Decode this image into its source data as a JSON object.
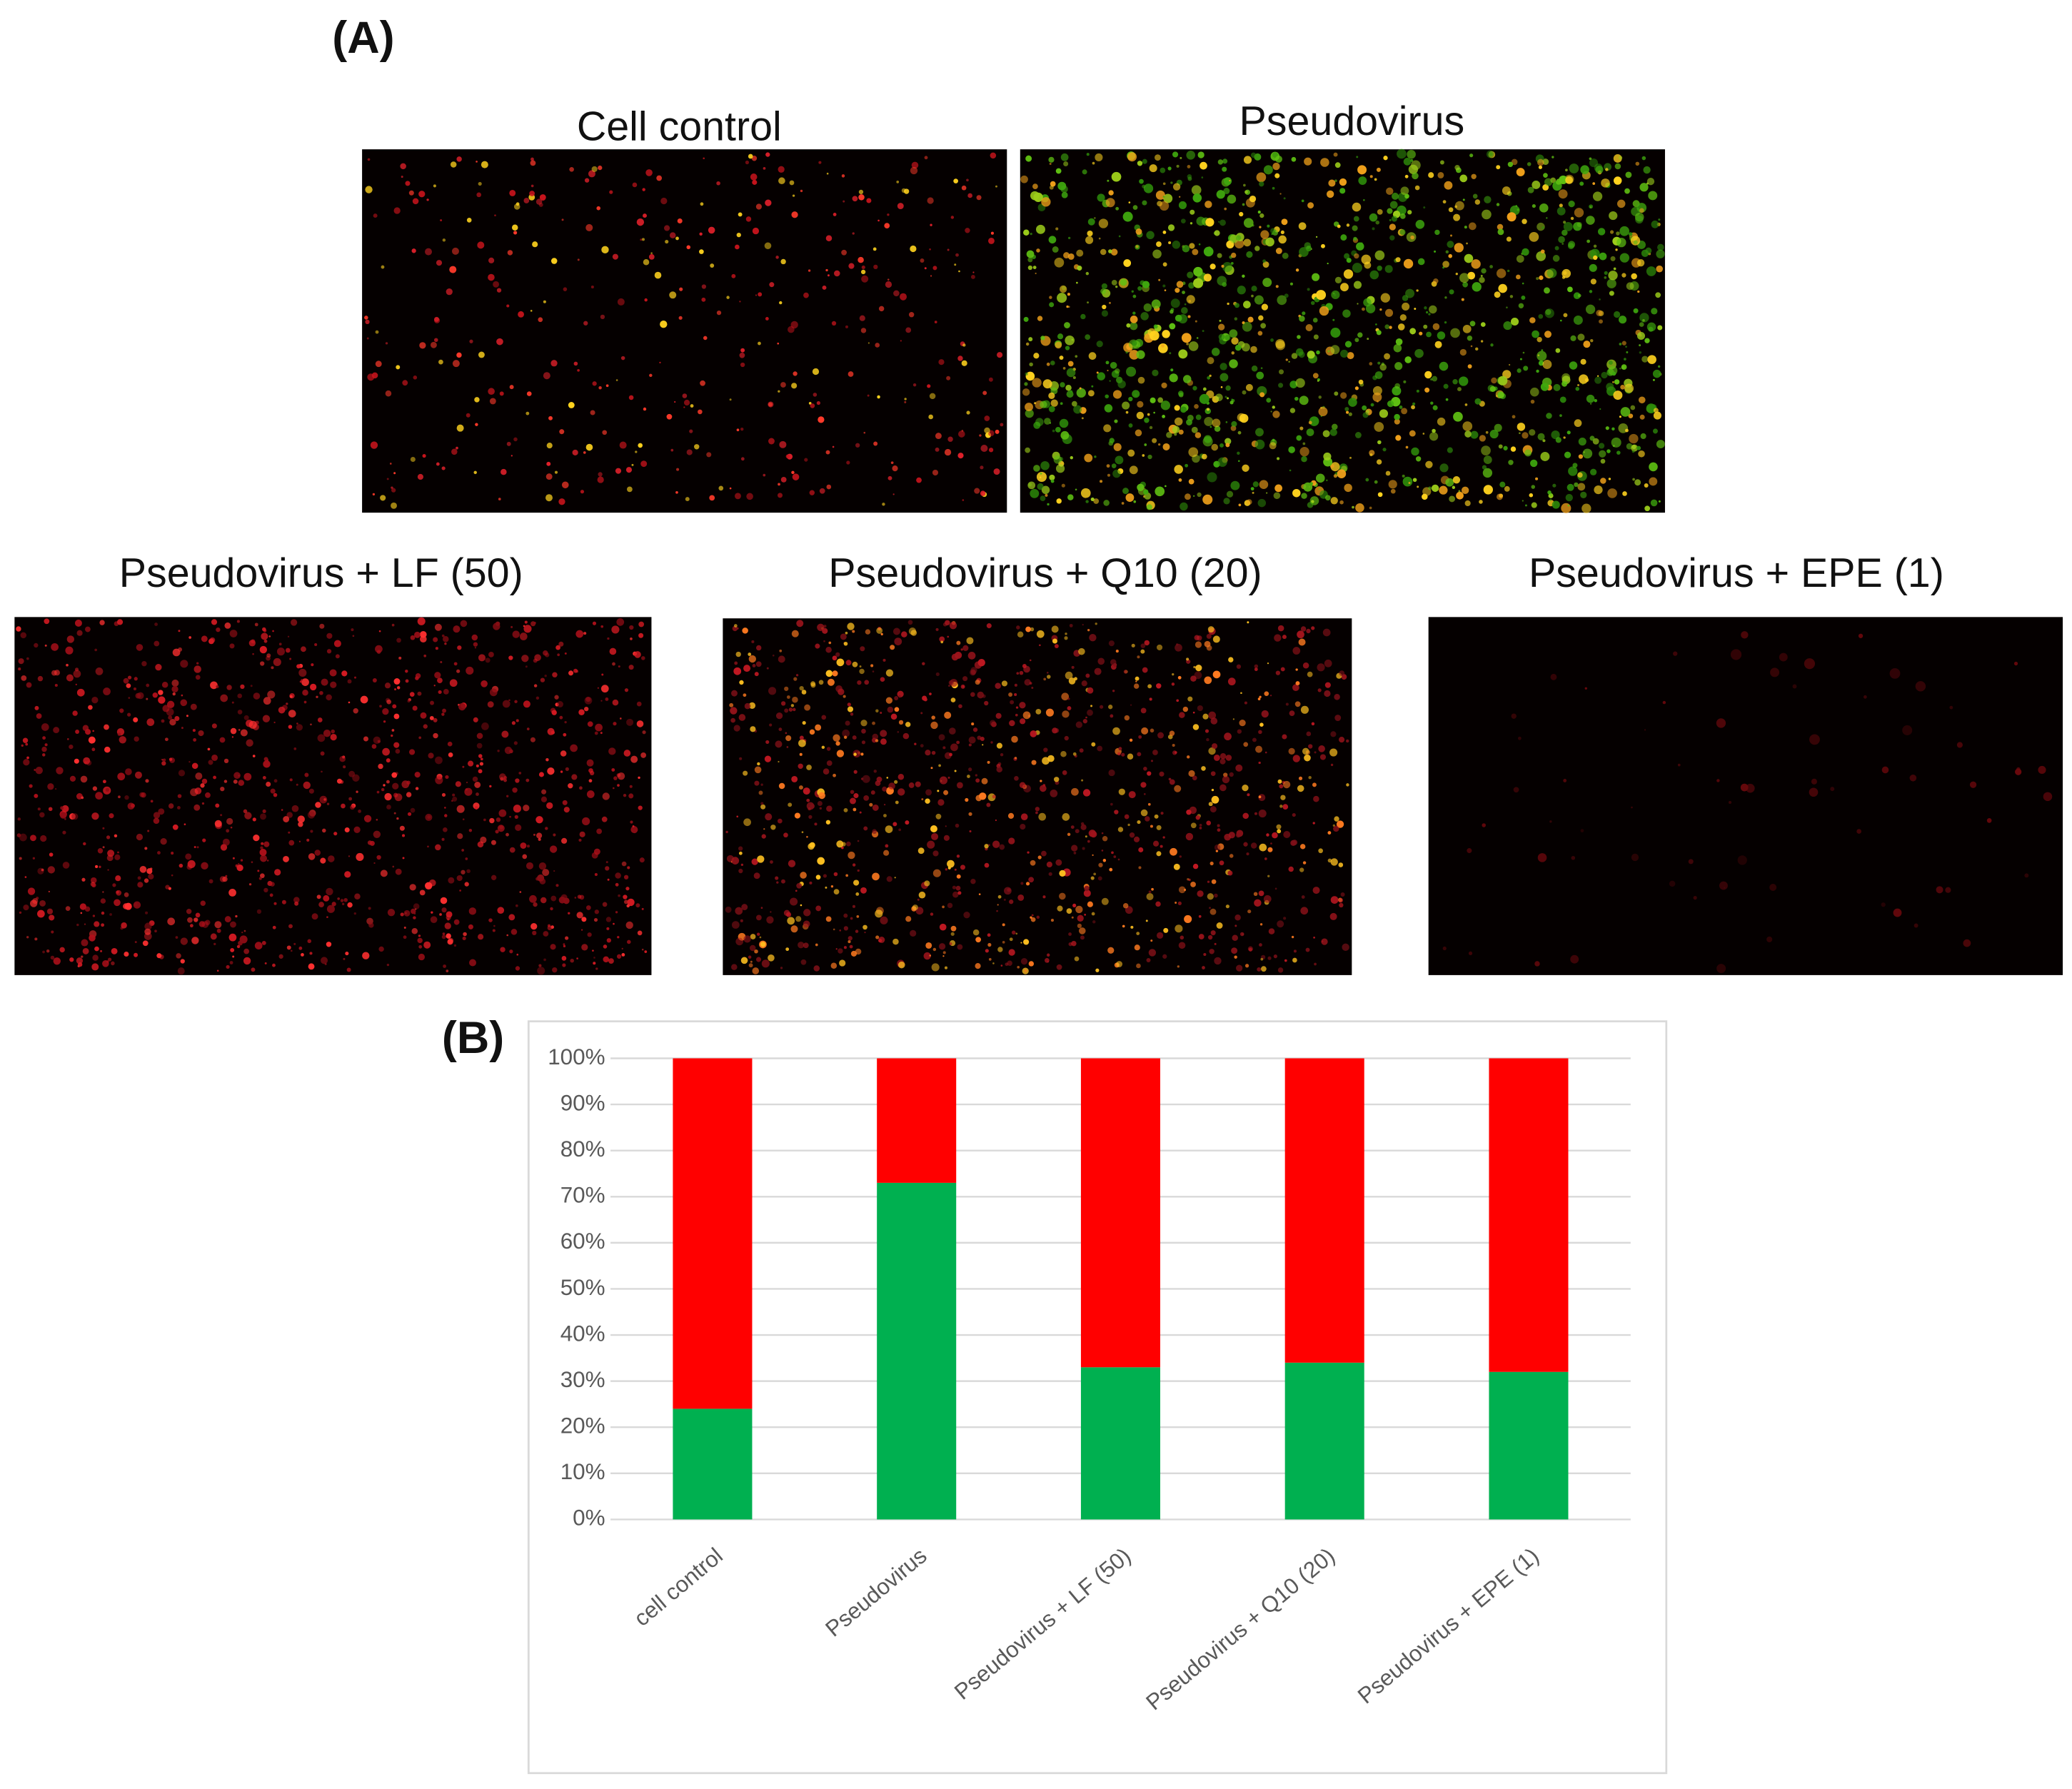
{
  "panel_a": {
    "label": "(A)",
    "images": [
      "Cell control",
      "Pseudovirus",
      "Pseudovirus + LF (50)",
      "Pseudovirus + Q10 (20)",
      "Pseudovirus + EPE (1)"
    ]
  },
  "chart_data": {
    "type": "bar",
    "stacked": true,
    "panel_label": "(B)",
    "categories": [
      "cell control",
      "Pseudovirus",
      "Pseudovirus + LF (50)",
      "Pseudovirus + Q10 (20)",
      "Pseudovirus + EPE (1)"
    ],
    "series": [
      {
        "color": "#00b050",
        "values": [
          24,
          73,
          33,
          34,
          32
        ]
      },
      {
        "color": "#ff0000",
        "values": [
          76,
          27,
          67,
          66,
          68
        ]
      }
    ],
    "ylim": [
      0,
      100
    ],
    "yticks": [
      {
        "value": 0,
        "label": "0%"
      },
      {
        "value": 10,
        "label": "10%"
      },
      {
        "value": 20,
        "label": "20%"
      },
      {
        "value": 30,
        "label": "30%"
      },
      {
        "value": 40,
        "label": "40%"
      },
      {
        "value": 50,
        "label": "50%"
      },
      {
        "value": 60,
        "label": "60%"
      },
      {
        "value": 70,
        "label": "70%"
      },
      {
        "value": 80,
        "label": "80%"
      },
      {
        "value": 90,
        "label": "90%"
      },
      {
        "value": 100,
        "label": "100%"
      }
    ],
    "grid": true
  }
}
